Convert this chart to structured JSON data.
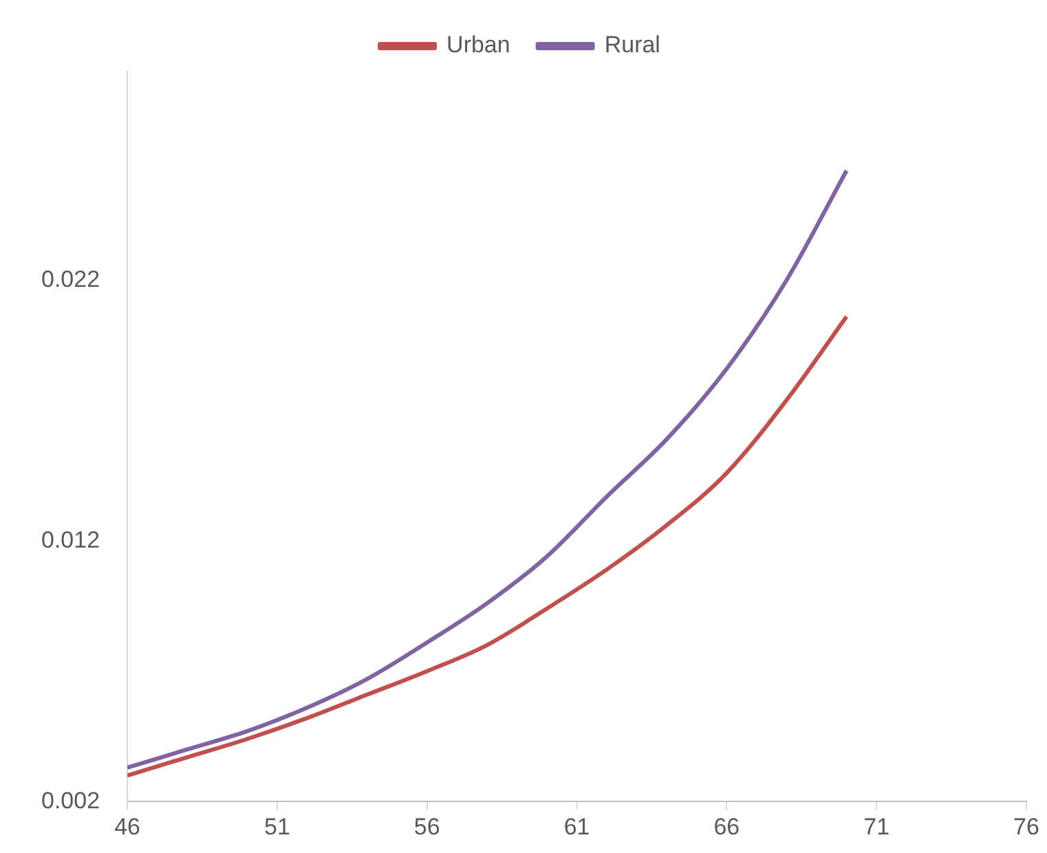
{
  "chart_data": {
    "type": "line",
    "x": [
      46,
      48,
      50,
      52,
      54,
      56,
      58,
      60,
      62,
      64,
      66,
      68,
      70
    ],
    "series": [
      {
        "name": "Urban",
        "color": "#c0504d",
        "values": [
          0.003,
          0.0037,
          0.0044,
          0.0052,
          0.0061,
          0.007,
          0.008,
          0.0094,
          0.0109,
          0.0126,
          0.0146,
          0.0174,
          0.0206
        ]
      },
      {
        "name": "Rural",
        "color": "#8064a2",
        "values": [
          0.0033,
          0.004,
          0.0047,
          0.0056,
          0.0067,
          0.0081,
          0.0096,
          0.0114,
          0.0137,
          0.0159,
          0.0186,
          0.022,
          0.0262
        ]
      }
    ],
    "xlim": [
      46,
      76
    ],
    "xticks": [
      46,
      51,
      56,
      61,
      66,
      71,
      76
    ],
    "ylim": [
      0.002,
      0.03
    ],
    "yticks": [
      0.002,
      0.012,
      0.022
    ],
    "grid": false,
    "legend": "top",
    "marker": "none",
    "line_style": "solid"
  }
}
